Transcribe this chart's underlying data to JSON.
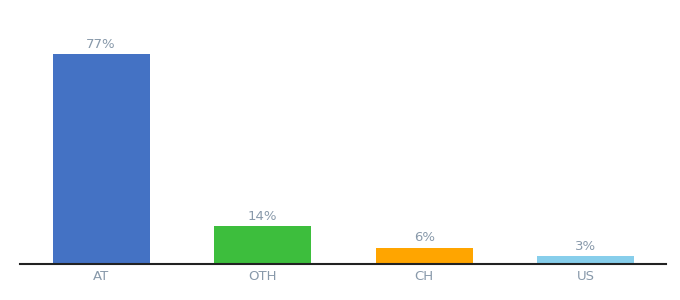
{
  "categories": [
    "AT",
    "OTH",
    "CH",
    "US"
  ],
  "values": [
    77,
    14,
    6,
    3
  ],
  "bar_colors": [
    "#4472C4",
    "#3DBE3D",
    "#FFA500",
    "#87CEEB"
  ],
  "label_texts": [
    "77%",
    "14%",
    "6%",
    "3%"
  ],
  "ylim": [
    0,
    88
  ],
  "background_color": "#ffffff",
  "bar_width": 0.6,
  "label_fontsize": 9.5,
  "tick_fontsize": 9.5,
  "label_color": "#8899AA",
  "tick_color": "#8899AA",
  "spine_color": "#222222",
  "x_positions": [
    0.5,
    1.5,
    2.5,
    3.5
  ]
}
